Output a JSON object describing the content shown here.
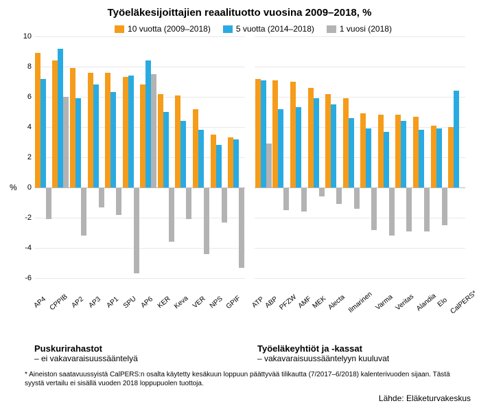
{
  "title": "Työeläkesijoittajien reaalituotto vuosina 2009–2018, %",
  "legend": {
    "series1": {
      "label": "10 vuotta (2009–2018)",
      "color": "#f59c1a"
    },
    "series2": {
      "label": "5 vuotta (2014–2018)",
      "color": "#29abe2"
    },
    "series3": {
      "label": "1 vuosi (2018)",
      "color": "#b3b3b3"
    }
  },
  "y": {
    "min": -7,
    "max": 10,
    "ticks": [
      10,
      8,
      6,
      4,
      2,
      0,
      -2,
      -4,
      -6
    ],
    "pct_label": "%",
    "grid_color": "#e8e8e8"
  },
  "panel1": {
    "title_main": "Puskurirahastot",
    "title_sub": "– ei vakavaraisuussääntelyä",
    "cats": [
      "AP4",
      "CPPIB",
      "AP2",
      "AP3",
      "AP1",
      "SPU",
      "AP6",
      "KER",
      "Keva",
      "VER",
      "NPS",
      "GPIF"
    ],
    "s1": [
      8.9,
      8.4,
      7.9,
      7.6,
      7.6,
      7.3,
      6.8,
      6.2,
      6.1,
      5.2,
      3.5,
      3.3
    ],
    "s2": [
      7.2,
      9.2,
      5.9,
      6.8,
      6.3,
      7.4,
      8.4,
      5.0,
      4.4,
      3.8,
      2.8,
      3.2
    ],
    "s3": [
      -2.1,
      6.0,
      -3.2,
      -1.3,
      -1.8,
      -5.7,
      7.5,
      -3.6,
      -2.1,
      -4.4,
      -2.3,
      -5.3
    ]
  },
  "panel2": {
    "title_main": "Työeläkeyhtiöt ja -kassat",
    "title_sub": "– vakavaraisuussääntelyyn kuuluvat",
    "cats": [
      "ATP",
      "ABP",
      "PFZW",
      "AMF",
      "MEK",
      "Alecta",
      "Ilmarinen",
      "Varma",
      "Veritas",
      "Alandia",
      "Elo",
      "CalPERS*"
    ],
    "s1": [
      7.2,
      7.1,
      7.0,
      6.6,
      6.2,
      5.9,
      4.9,
      4.8,
      4.8,
      4.7,
      4.1,
      4.0
    ],
    "s2": [
      7.1,
      5.2,
      5.3,
      5.9,
      5.5,
      4.6,
      3.9,
      3.7,
      4.4,
      3.8,
      3.9,
      6.4
    ],
    "s3": [
      2.9,
      -1.5,
      -1.6,
      -0.6,
      -1.1,
      -1.4,
      -2.8,
      -3.2,
      -2.9,
      -2.9,
      -2.5,
      null
    ]
  },
  "footnote": "* Aineiston saatavuussyistä CalPERS:n osalta käytetty kesäkuun loppuun päättyvää tilikautta (7/2017–6/2018) kalenterivuoden sijaan. Tästä syystä vertailu ei sisällä vuoden 2018 loppupuolen tuottoja.",
  "source": "Lähde: Eläketurvakeskus"
}
